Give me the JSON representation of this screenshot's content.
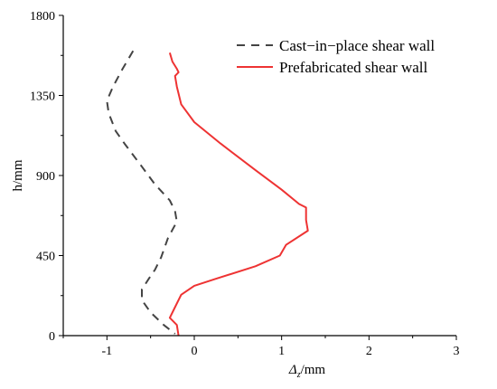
{
  "chart_data": {
    "type": "line",
    "xlabel_main": "Δ",
    "xlabel_sub": "z",
    "xlabel_unit": "/mm",
    "ylabel": "h/mm",
    "xlim": [
      -1.5,
      3
    ],
    "ylim": [
      0,
      1800
    ],
    "xticks": [
      -1,
      0,
      1,
      2,
      3
    ],
    "yticks": [
      0,
      450,
      900,
      1350,
      1800
    ],
    "grid": false,
    "legend_position": "top-right",
    "series": [
      {
        "name": "Cast−in−place  shear wall",
        "style": "dashed",
        "color": "#444444",
        "points": [
          [
            -0.7,
            1600
          ],
          [
            -0.82,
            1500
          ],
          [
            -0.93,
            1400
          ],
          [
            -1.0,
            1320
          ],
          [
            -0.98,
            1250
          ],
          [
            -0.9,
            1150
          ],
          [
            -0.8,
            1080
          ],
          [
            -0.6,
            950
          ],
          [
            -0.45,
            850
          ],
          [
            -0.28,
            760
          ],
          [
            -0.22,
            700
          ],
          [
            -0.2,
            640
          ],
          [
            -0.3,
            550
          ],
          [
            -0.38,
            440
          ],
          [
            -0.45,
            370
          ],
          [
            -0.52,
            320
          ],
          [
            -0.6,
            260
          ],
          [
            -0.6,
            200
          ],
          [
            -0.5,
            130
          ],
          [
            -0.35,
            60
          ],
          [
            -0.22,
            10
          ]
        ]
      },
      {
        "name": "Prefabricated  shear wall",
        "style": "solid",
        "color": "#ee3333",
        "points": [
          [
            -0.28,
            1590
          ],
          [
            -0.25,
            1540
          ],
          [
            -0.2,
            1500
          ],
          [
            -0.18,
            1480
          ],
          [
            -0.22,
            1460
          ],
          [
            -0.2,
            1400
          ],
          [
            -0.15,
            1300
          ],
          [
            0.0,
            1200
          ],
          [
            0.3,
            1080
          ],
          [
            0.7,
            930
          ],
          [
            1.0,
            820
          ],
          [
            1.2,
            740
          ],
          [
            1.28,
            720
          ],
          [
            1.28,
            650
          ],
          [
            1.3,
            590
          ],
          [
            1.05,
            510
          ],
          [
            0.98,
            450
          ],
          [
            0.7,
            390
          ],
          [
            0.25,
            320
          ],
          [
            0.0,
            280
          ],
          [
            -0.15,
            230
          ],
          [
            -0.22,
            160
          ],
          [
            -0.28,
            100
          ],
          [
            -0.2,
            60
          ],
          [
            -0.18,
            0
          ]
        ]
      }
    ]
  }
}
